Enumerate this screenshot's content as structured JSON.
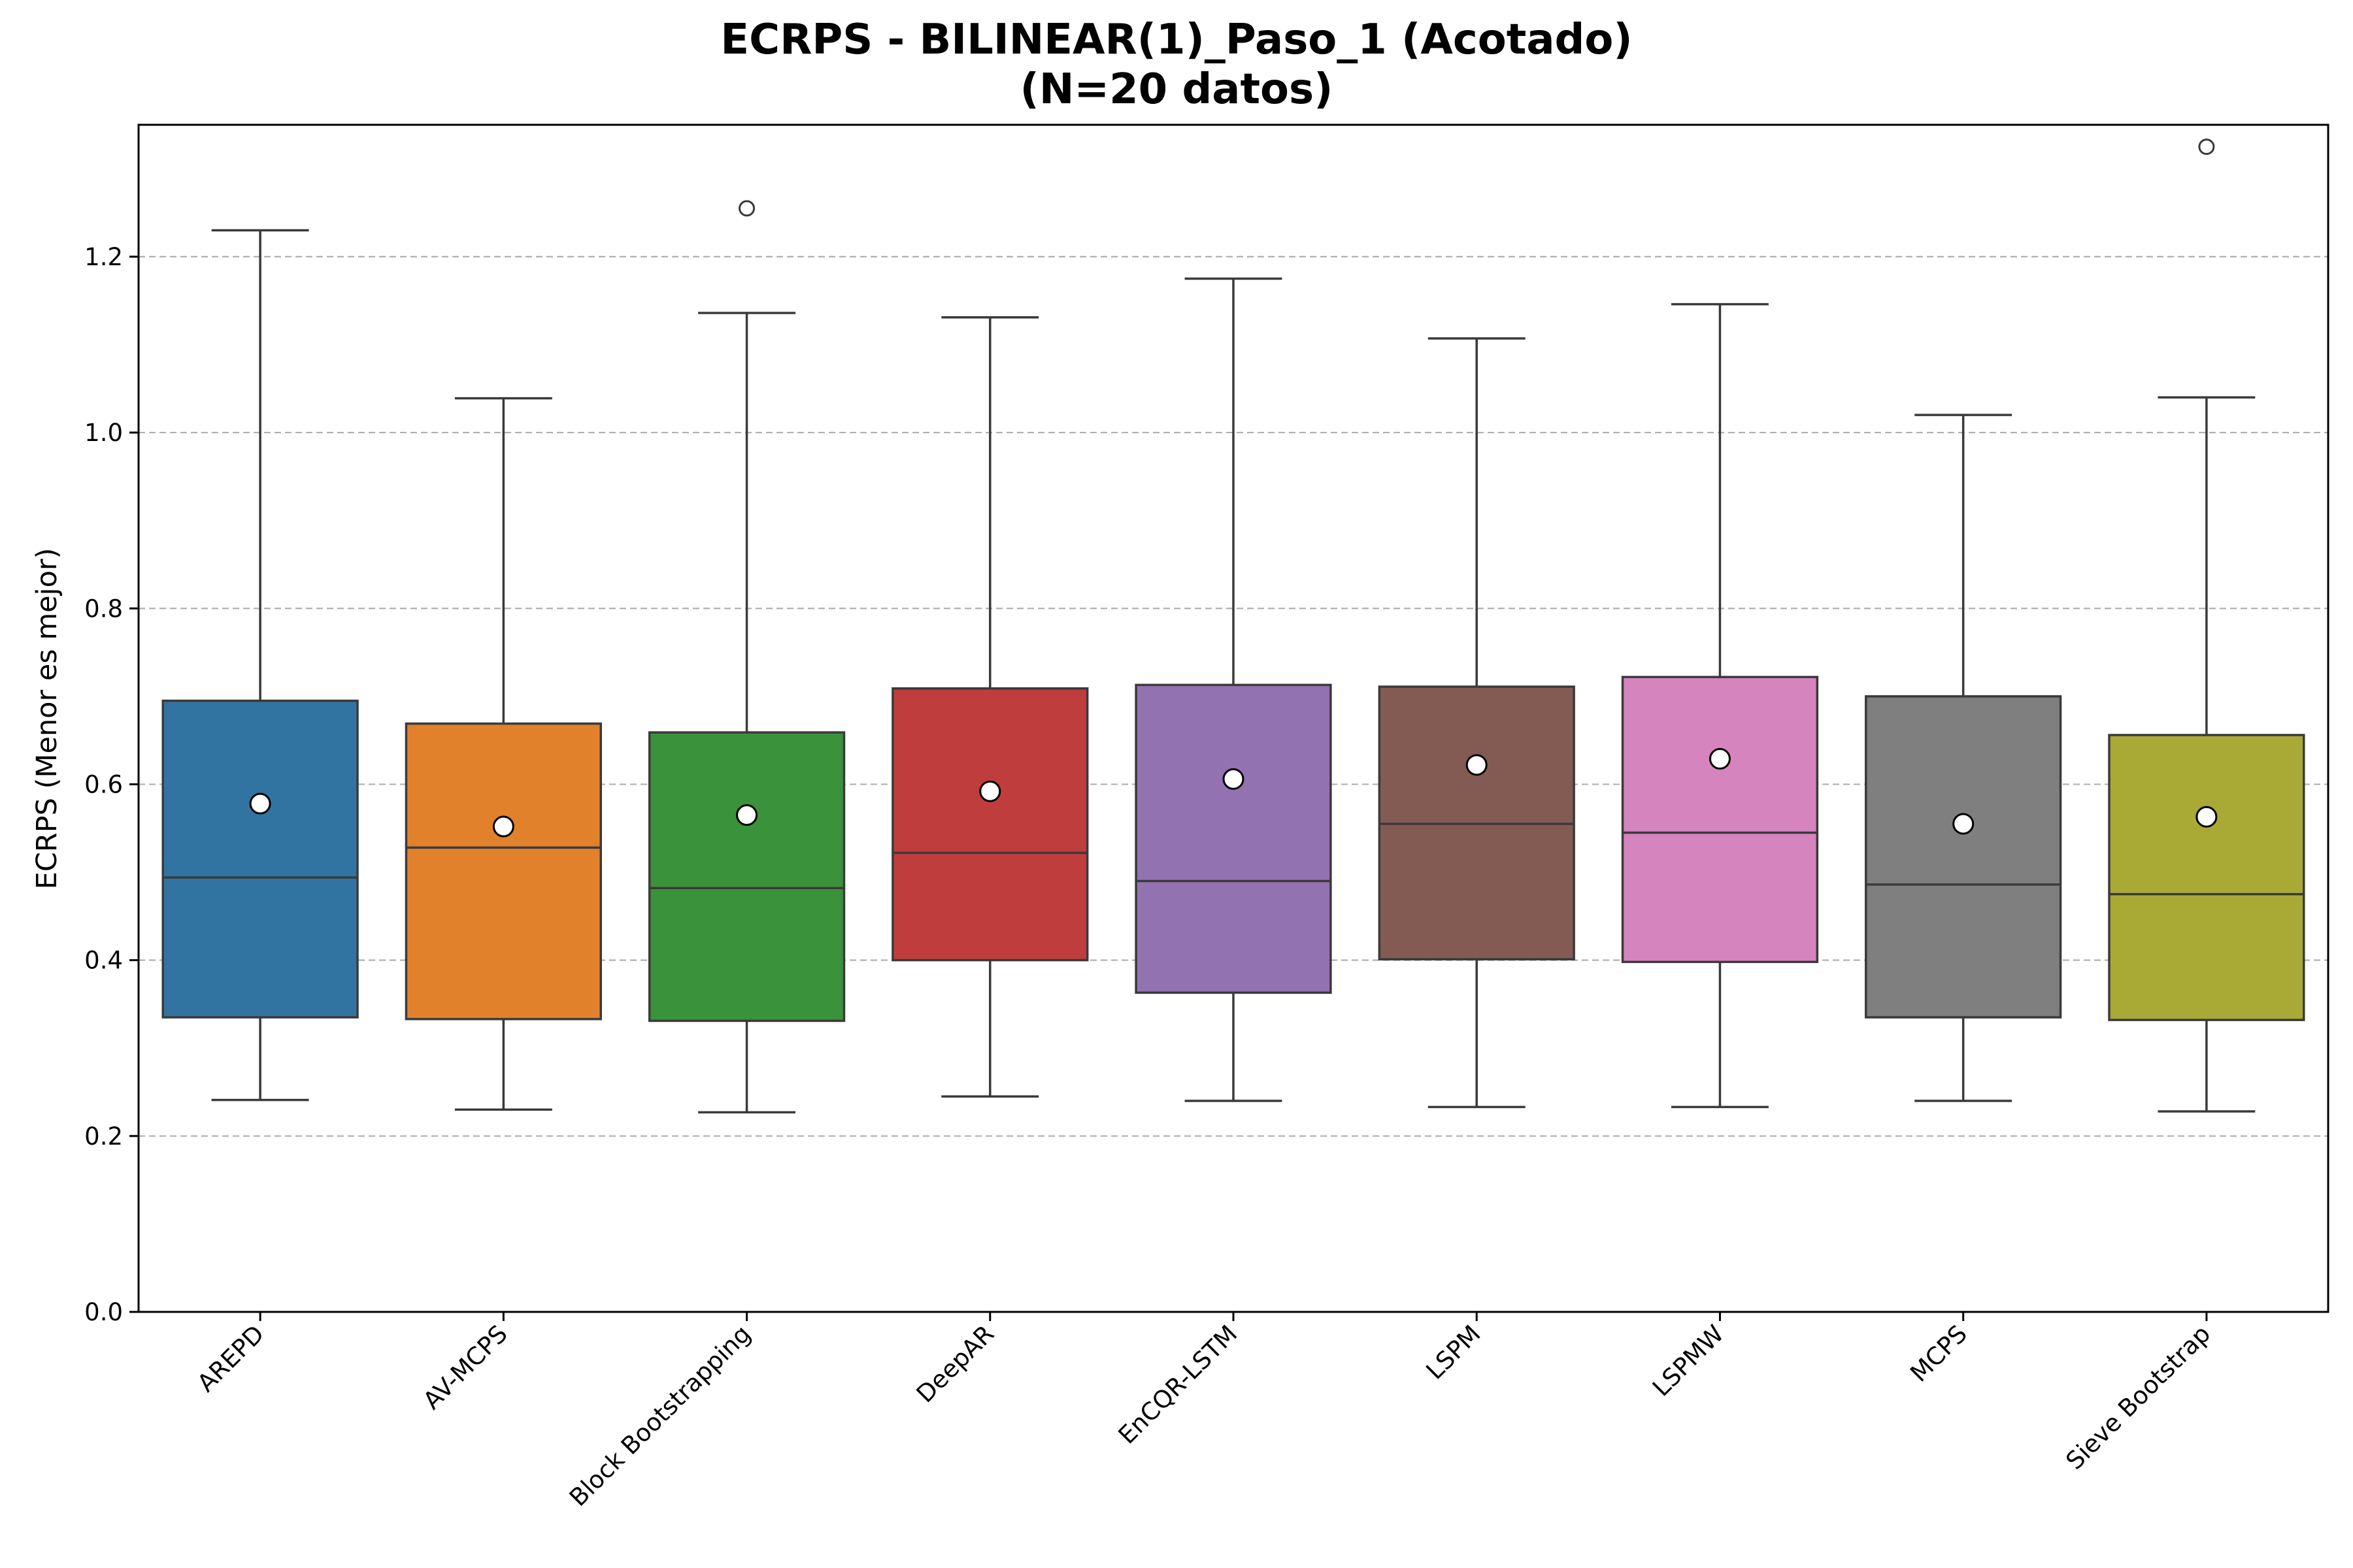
{
  "chart_data": {
    "type": "box",
    "title": "ECRPS - BILINEAR(1)_Paso_1 (Acotado)",
    "subtitle": "(N=20 datos)",
    "xlabel": "",
    "ylabel": "ECRPS (Menor es mejor)",
    "ylim": [
      0,
      1.35
    ],
    "yticks": [
      0.0,
      0.2,
      0.4,
      0.6,
      0.8,
      1.0,
      1.2
    ],
    "ytick_labels": [
      "0.0",
      "0.2",
      "0.4",
      "0.6",
      "0.8",
      "1.0",
      "1.2"
    ],
    "grid": "horizontal dashed",
    "categories": [
      "AREPD",
      "AV-MCPS",
      "Block Bootstrapping",
      "DeepAR",
      "EnCQR-LSTM",
      "LSPM",
      "LSPMW",
      "MCPS",
      "Sieve Bootstrap"
    ],
    "boxes": [
      {
        "name": "AREPD",
        "color": "#3274a1",
        "whisker_low": 0.241,
        "q1": 0.335,
        "median": 0.494,
        "q3": 0.695,
        "whisker_high": 1.23,
        "mean": 0.578,
        "outliers": []
      },
      {
        "name": "AV-MCPS",
        "color": "#e1812c",
        "whisker_low": 0.23,
        "q1": 0.333,
        "median": 0.528,
        "q3": 0.669,
        "whisker_high": 1.039,
        "mean": 0.552,
        "outliers": []
      },
      {
        "name": "Block Bootstrapping",
        "color": "#3a923a",
        "whisker_low": 0.227,
        "q1": 0.331,
        "median": 0.482,
        "q3": 0.659,
        "whisker_high": 1.136,
        "mean": 0.565,
        "outliers": [
          1.255
        ]
      },
      {
        "name": "DeepAR",
        "color": "#c03d3e",
        "whisker_low": 0.245,
        "q1": 0.4,
        "median": 0.522,
        "q3": 0.709,
        "whisker_high": 1.131,
        "mean": 0.592,
        "outliers": []
      },
      {
        "name": "EnCQR-LSTM",
        "color": "#9372b2",
        "whisker_low": 0.24,
        "q1": 0.363,
        "median": 0.49,
        "q3": 0.713,
        "whisker_high": 1.175,
        "mean": 0.606,
        "outliers": []
      },
      {
        "name": "LSPM",
        "color": "#845b53",
        "whisker_low": 0.233,
        "q1": 0.401,
        "median": 0.555,
        "q3": 0.711,
        "whisker_high": 1.107,
        "mean": 0.622,
        "outliers": []
      },
      {
        "name": "LSPMW",
        "color": "#d684bd",
        "whisker_low": 0.233,
        "q1": 0.398,
        "median": 0.545,
        "q3": 0.722,
        "whisker_high": 1.146,
        "mean": 0.629,
        "outliers": []
      },
      {
        "name": "MCPS",
        "color": "#7f7f7f",
        "whisker_low": 0.24,
        "q1": 0.335,
        "median": 0.486,
        "q3": 0.7,
        "whisker_high": 1.02,
        "mean": 0.555,
        "outliers": []
      },
      {
        "name": "Sieve Bootstrap",
        "color": "#a9aa35",
        "whisker_low": 0.228,
        "q1": 0.332,
        "median": 0.475,
        "q3": 0.656,
        "whisker_high": 1.04,
        "mean": 0.563,
        "outliers": [
          1.325
        ]
      }
    ],
    "mean_marker": {
      "fill": "#ffffff",
      "edge": "#000000"
    },
    "line_color": "#3a3a3a"
  }
}
